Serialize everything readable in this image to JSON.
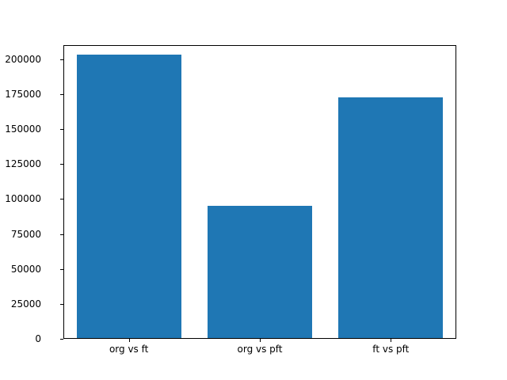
{
  "chart_data": {
    "type": "bar",
    "categories": [
      "org vs ft",
      "org vs pft",
      "ft vs pft"
    ],
    "values": [
      204000,
      95000,
      173000
    ],
    "title": "",
    "xlabel": "",
    "ylabel": "",
    "ylim": [
      0,
      210000
    ],
    "yticks": [
      0,
      25000,
      50000,
      75000,
      100000,
      125000,
      150000,
      175000,
      200000
    ],
    "ytick_labels": [
      "0",
      "25000",
      "50000",
      "75000",
      "100000",
      "125000",
      "150000",
      "175000",
      "200000"
    ],
    "bar_color": "#1f77b4",
    "grid": false,
    "legend": "none"
  }
}
